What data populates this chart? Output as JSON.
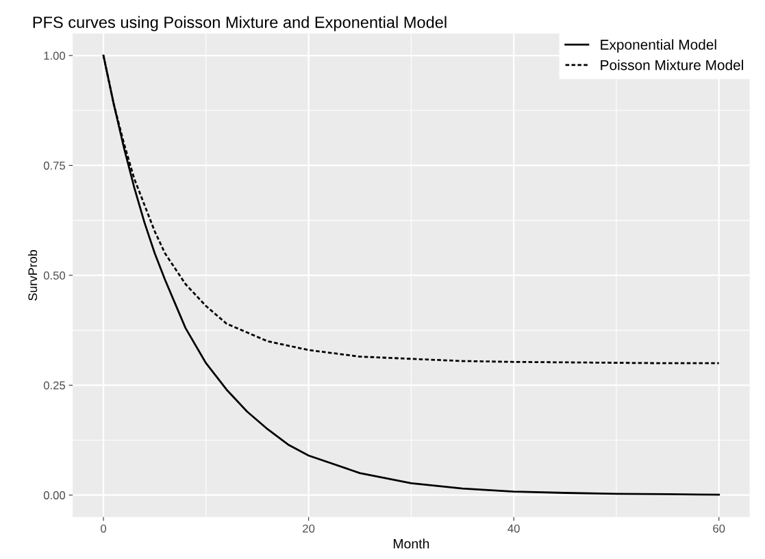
{
  "chart_data": {
    "type": "line",
    "title": "PFS curves using Poisson Mixture and Exponential Model",
    "xlabel": "Month",
    "ylabel": "SurvProb",
    "x": [
      0,
      1,
      2,
      3,
      4,
      5,
      6,
      8,
      10,
      12,
      14,
      16,
      18,
      20,
      25,
      30,
      35,
      40,
      45,
      50,
      55,
      60
    ],
    "series": [
      {
        "name": "Exponential Model",
        "color": "#000000",
        "line_style": "solid",
        "values": [
          1.0,
          0.89,
          0.79,
          0.7,
          0.62,
          0.55,
          0.49,
          0.38,
          0.3,
          0.24,
          0.19,
          0.15,
          0.115,
          0.09,
          0.05,
          0.027,
          0.015,
          0.008,
          0.005,
          0.003,
          0.002,
          0.001
        ]
      },
      {
        "name": "Poisson Mixture Model",
        "color": "#000000",
        "line_style": "dashed",
        "values": [
          1.0,
          0.89,
          0.8,
          0.72,
          0.66,
          0.6,
          0.55,
          0.48,
          0.43,
          0.39,
          0.37,
          0.35,
          0.34,
          0.33,
          0.315,
          0.31,
          0.305,
          0.303,
          0.302,
          0.301,
          0.3,
          0.3
        ]
      }
    ],
    "xlim": [
      -3,
      63
    ],
    "ylim": [
      -0.05,
      1.05
    ],
    "xticks": [
      0,
      20,
      40,
      60
    ],
    "yticks": [
      {
        "value": 0,
        "label": "0.00"
      },
      {
        "value": 0.25,
        "label": "0.25"
      },
      {
        "value": 0.5,
        "label": "0.50"
      },
      {
        "value": 0.75,
        "label": "0.75"
      },
      {
        "value": 1,
        "label": "1.00"
      }
    ],
    "grid": true,
    "legend": "top right"
  }
}
